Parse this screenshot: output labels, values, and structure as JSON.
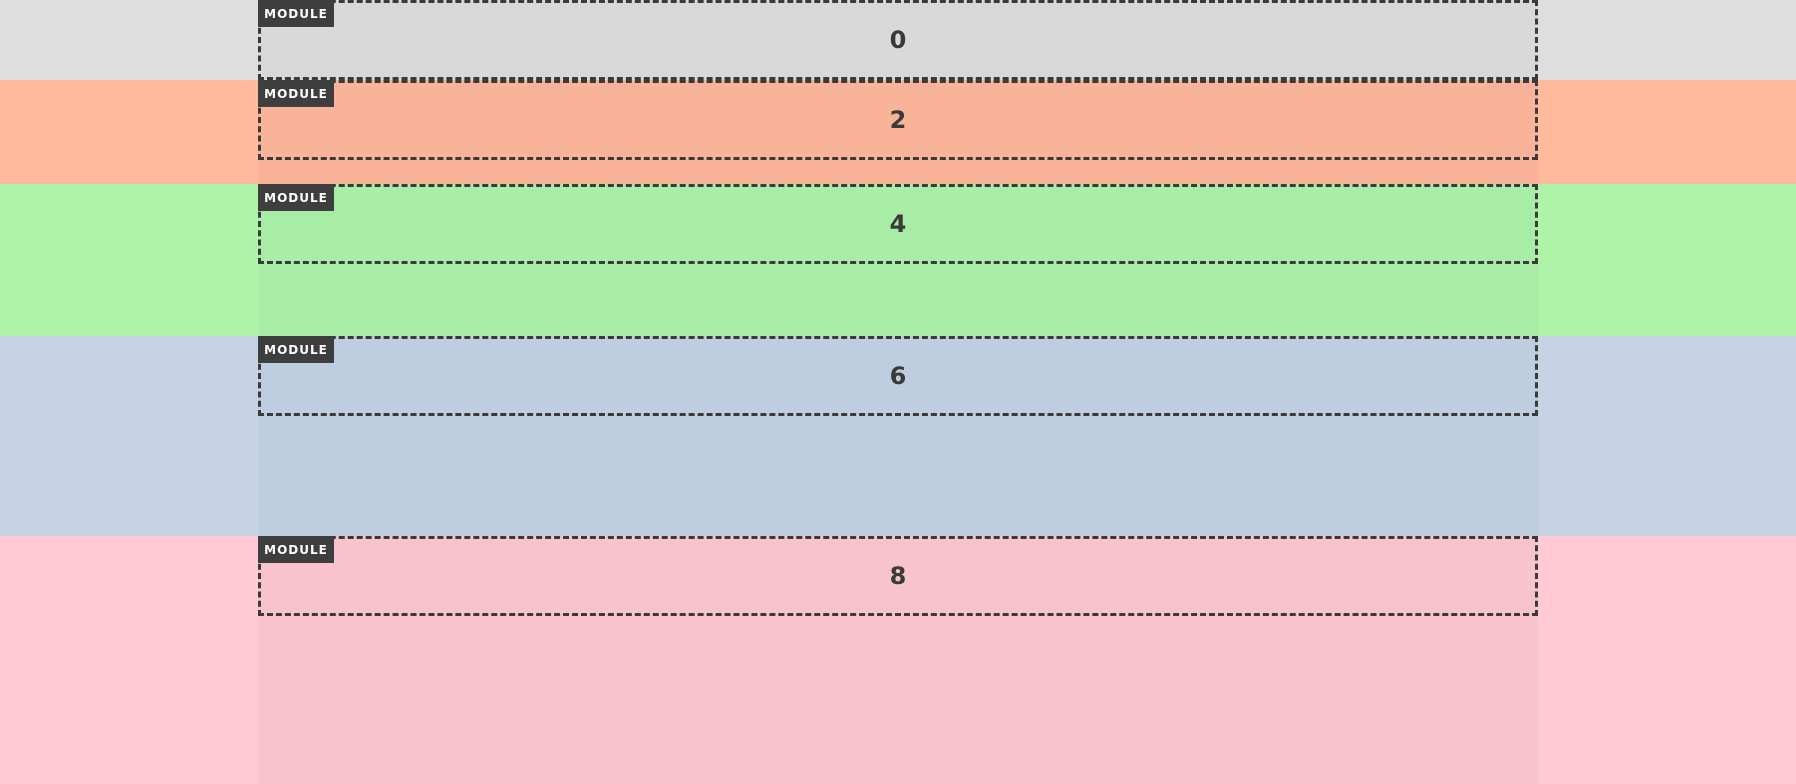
{
  "colors": {
    "band_0": "#dedede",
    "band_0_inner": "#d9d9d9",
    "band_1": "#ffbb9c",
    "band_1_inner": "#f9b398",
    "band_2": "#aef3a8",
    "band_2_inner": "#a7eda6",
    "band_3": "#c6d3e4",
    "band_3_inner": "#becddf",
    "band_4": "#ffcad4",
    "band_4_inner": "#f8c3cc",
    "tag_bg": "#3e3e3e",
    "border": "#3a3a3a"
  },
  "modules": [
    {
      "tag": "MODULE",
      "label": "0"
    },
    {
      "tag": "MODULE",
      "label": "2"
    },
    {
      "tag": "MODULE",
      "label": "4"
    },
    {
      "tag": "MODULE",
      "label": "6"
    },
    {
      "tag": "MODULE",
      "label": "8"
    }
  ]
}
